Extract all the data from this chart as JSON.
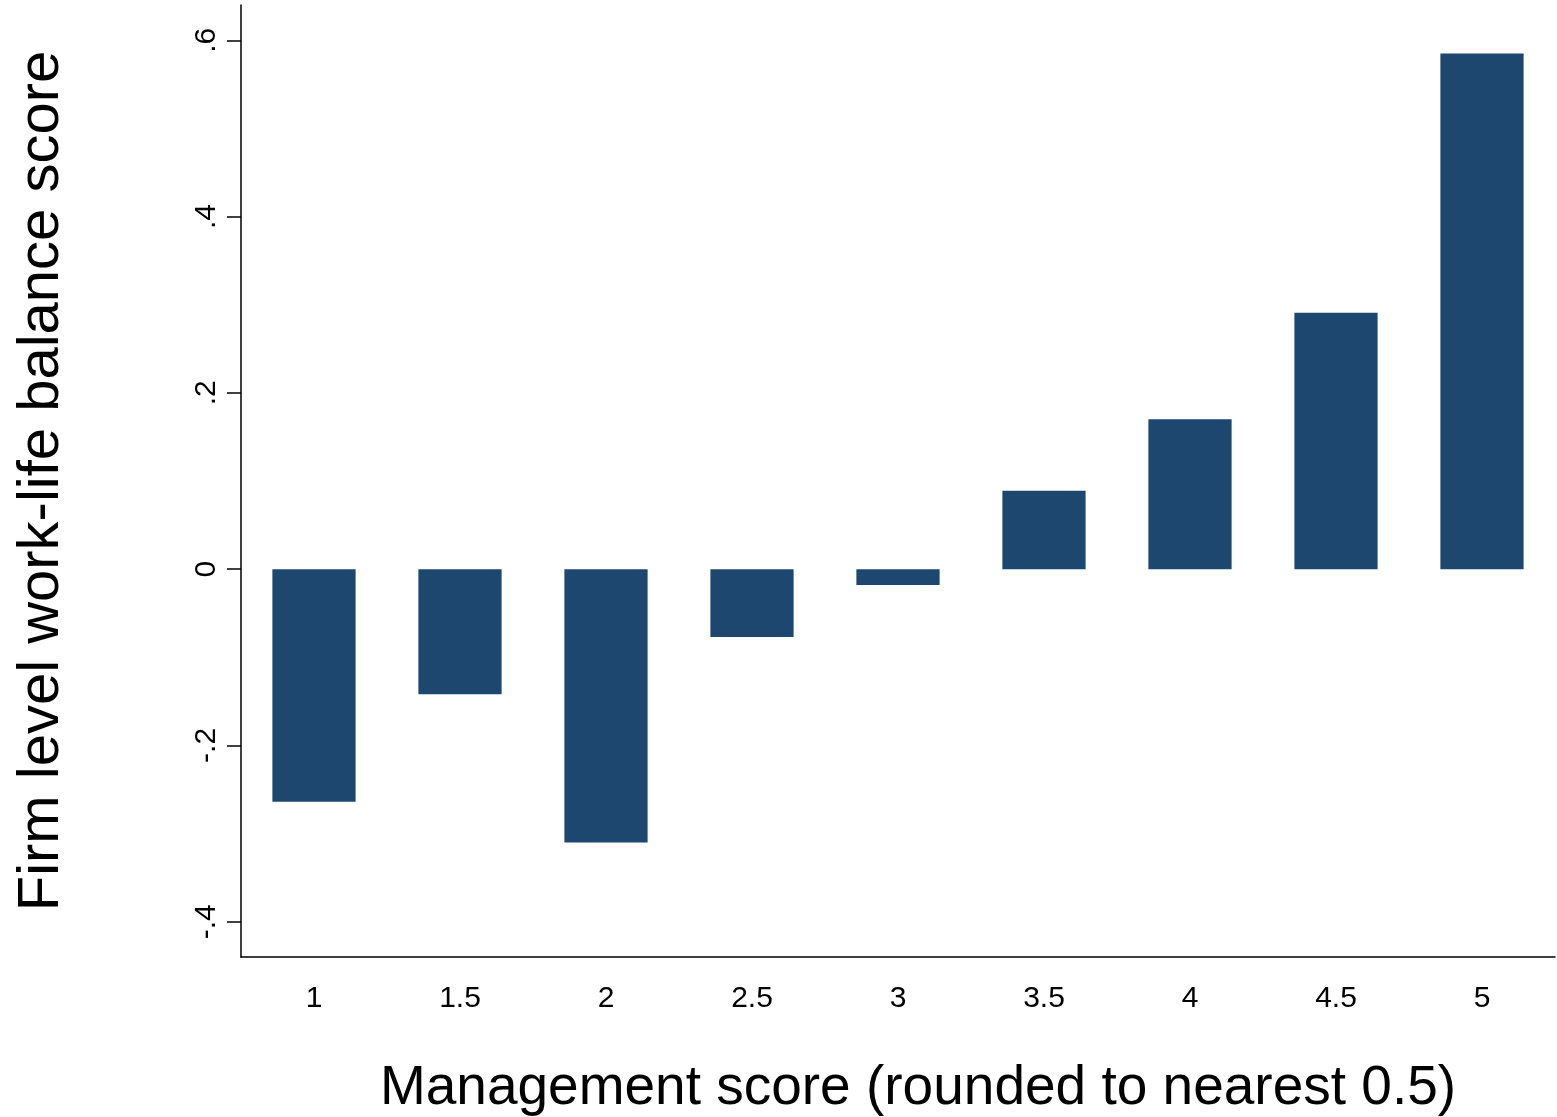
{
  "chart_data": {
    "type": "bar",
    "xlabel": "Management score (rounded to nearest 0.5)",
    "ylabel": "Firm level work-life balance score",
    "categories": [
      "1",
      "1.5",
      "2",
      "2.5",
      "3",
      "3.5",
      "4",
      "4.5",
      "5"
    ],
    "values": [
      -0.264,
      -0.142,
      -0.31,
      -0.077,
      -0.018,
      0.089,
      0.17,
      0.291,
      0.585
    ],
    "color": "#1d476e",
    "ylim": [
      -0.44,
      0.64
    ],
    "yticks": [
      {
        "value": -0.4,
        "label": "-.4"
      },
      {
        "value": -0.2,
        "label": "-.2"
      },
      0,
      {
        "value": 0.2,
        "label": ".2"
      },
      {
        "value": 0.4,
        "label": ".4"
      },
      {
        "value": 0.6,
        "label": ".6"
      }
    ],
    "grid": false
  }
}
